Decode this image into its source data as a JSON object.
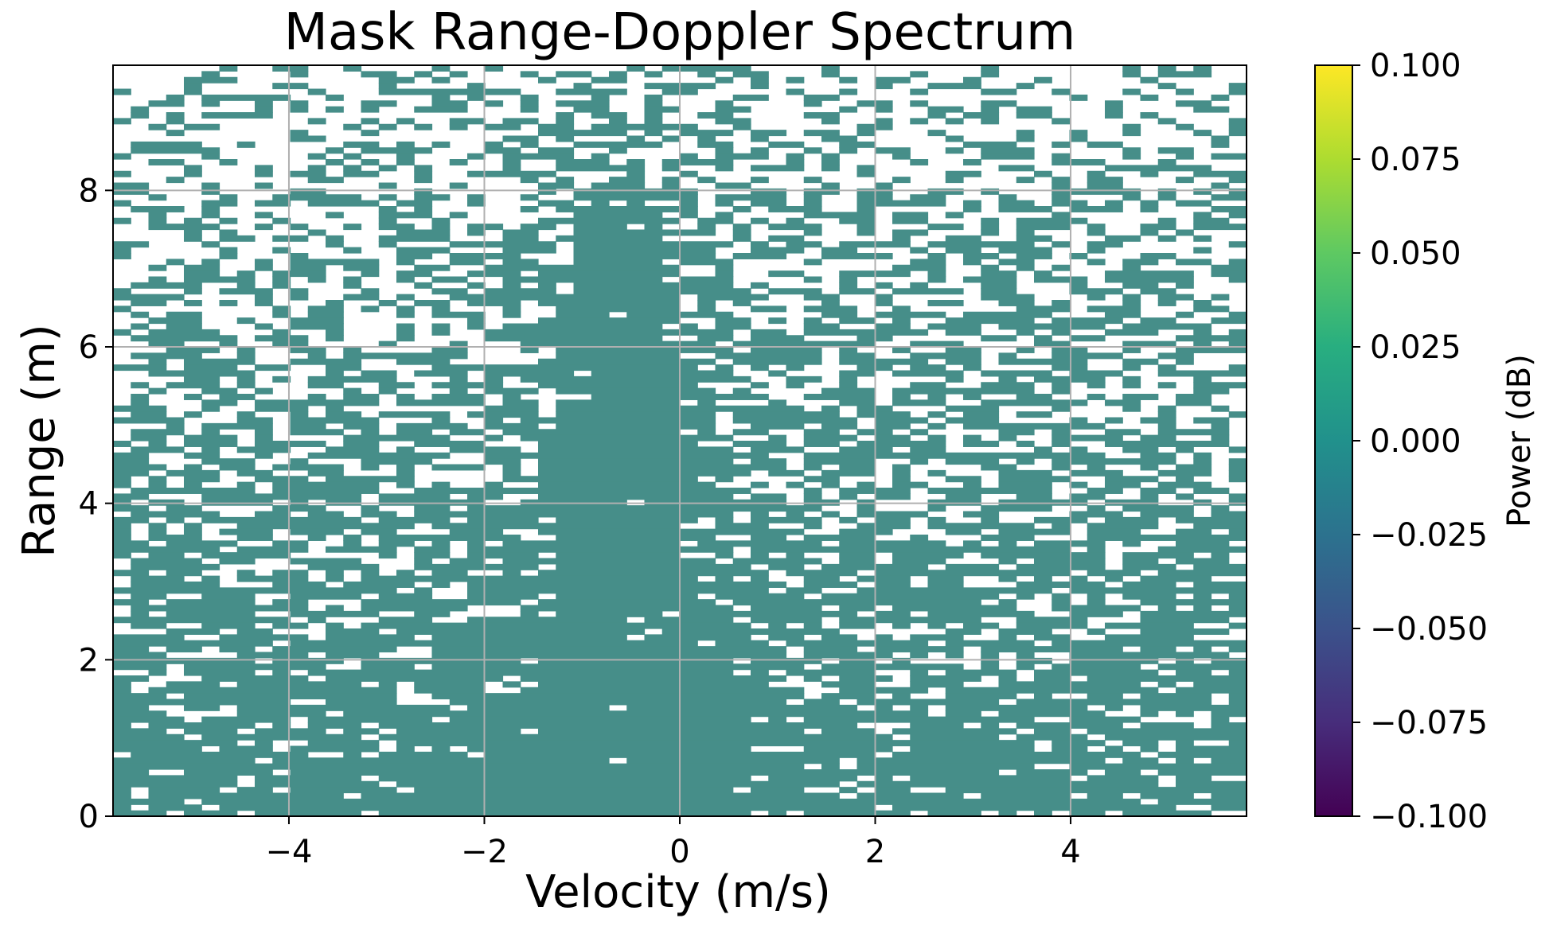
{
  "chart_data": {
    "type": "heatmap",
    "title": "Mask Range-Doppler Spectrum",
    "xlabel": "Velocity (m/s)",
    "ylabel": "Range (m)",
    "xlim": [
      -5.8,
      5.8
    ],
    "ylim": [
      0,
      9.6
    ],
    "x_ticks": [
      -4,
      -2,
      0,
      2,
      4
    ],
    "x_tick_labels": [
      "−4",
      "−2",
      "0",
      "2",
      "4"
    ],
    "y_ticks": [
      0,
      2,
      4,
      6,
      8
    ],
    "y_tick_labels": [
      "0",
      "2",
      "4",
      "6",
      "8"
    ],
    "grid": true,
    "colorbar": {
      "label": "Power (dB)",
      "colormap": "viridis",
      "range": [
        -0.1,
        0.1
      ],
      "ticks": [
        0.1,
        0.075,
        0.05,
        0.025,
        0.0,
        -0.025,
        -0.05,
        -0.075,
        -0.1
      ],
      "tick_labels": [
        "0.100",
        "0.075",
        "0.050",
        "0.025",
        "0.000",
        "−0.025",
        "−0.050",
        "−0.075",
        "−0.100"
      ]
    },
    "mask_value": 0.0,
    "mask_color": "#468E89",
    "background_color": "#ffffff",
    "mask_pattern": "dense random mask near zero range, thinning with increasing range; fully filled column from about -1.3 to 0 m/s up to about 7.8 m range"
  }
}
